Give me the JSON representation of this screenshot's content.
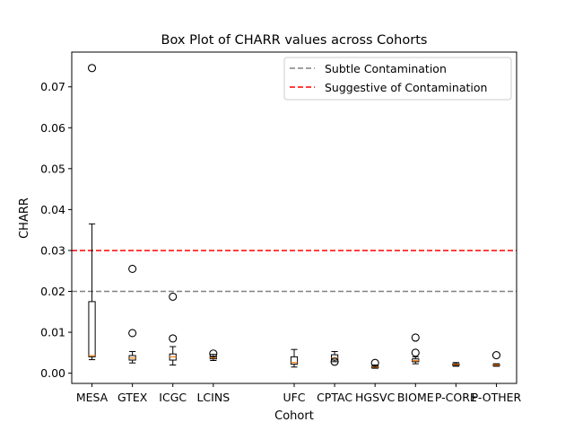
{
  "chart_data": {
    "type": "box",
    "title": "Box Plot of CHARR values across Cohorts",
    "xlabel": "Cohort",
    "ylabel": "CHARR",
    "ylim": [
      -0.0025,
      0.0785
    ],
    "yticks": [
      0.0,
      0.01,
      0.02,
      0.03,
      0.04,
      0.05,
      0.06,
      0.07
    ],
    "ytick_labels": [
      "0.00",
      "0.01",
      "0.02",
      "0.03",
      "0.04",
      "0.05",
      "0.06",
      "0.07"
    ],
    "grid": false,
    "legend_placement": "upper-right",
    "legend": [
      {
        "label": "Subtle Contamination",
        "color": "#808080",
        "style": "dashed"
      },
      {
        "label": "Suggestive of Contamination",
        "color": "#ff0000",
        "style": "dashed"
      }
    ],
    "hlines": [
      {
        "y": 0.02,
        "color": "#808080",
        "style": "dashed",
        "label": "Subtle Contamination"
      },
      {
        "y": 0.03,
        "color": "#ff0000",
        "style": "dashed",
        "label": "Suggestive of Contamination"
      }
    ],
    "median_color": "#ff7f0e",
    "categories": [
      "MESA",
      "GTEX",
      "ICGC",
      "LCINS",
      "UFC",
      "CPTAC",
      "HGSVC",
      "BIOME",
      "P-CORE",
      "P-OTHER"
    ],
    "positions": [
      1,
      2,
      3,
      4,
      6,
      7,
      8,
      9,
      10,
      11
    ],
    "boxes": [
      {
        "name": "MESA",
        "whislo": 0.0033,
        "q1": 0.004,
        "med": 0.0043,
        "q3": 0.0175,
        "whishi": 0.0365,
        "fliers": [
          0.0746
        ]
      },
      {
        "name": "GTEX",
        "whislo": 0.0025,
        "q1": 0.0032,
        "med": 0.0037,
        "q3": 0.0043,
        "whishi": 0.0053,
        "fliers": [
          0.0255,
          0.0098
        ]
      },
      {
        "name": "ICGC",
        "whislo": 0.002,
        "q1": 0.0032,
        "med": 0.004,
        "q3": 0.0047,
        "whishi": 0.0065,
        "fliers": [
          0.0187,
          0.0085
        ]
      },
      {
        "name": "LCINS",
        "whislo": 0.0031,
        "q1": 0.0035,
        "med": 0.0038,
        "q3": 0.0041,
        "whishi": 0.0046,
        "fliers": [
          0.0048
        ]
      },
      {
        "name": "UFC",
        "whislo": 0.0015,
        "q1": 0.0022,
        "med": 0.0026,
        "q3": 0.004,
        "whishi": 0.0058,
        "fliers": []
      },
      {
        "name": "CPTAC",
        "whislo": 0.0028,
        "q1": 0.0032,
        "med": 0.0037,
        "q3": 0.0045,
        "whishi": 0.0053,
        "fliers": [
          0.0028
        ]
      },
      {
        "name": "HGSVC",
        "whislo": 0.0012,
        "q1": 0.0013,
        "med": 0.0015,
        "q3": 0.0017,
        "whishi": 0.002,
        "fliers": [
          0.0025
        ]
      },
      {
        "name": "BIOME",
        "whislo": 0.0023,
        "q1": 0.0028,
        "med": 0.0031,
        "q3": 0.0035,
        "whishi": 0.004,
        "fliers": [
          0.0087,
          0.005
        ]
      },
      {
        "name": "P-CORE",
        "whislo": 0.0017,
        "q1": 0.0019,
        "med": 0.0021,
        "q3": 0.0023,
        "whishi": 0.0026,
        "fliers": []
      },
      {
        "name": "P-OTHER",
        "whislo": 0.0017,
        "q1": 0.0019,
        "med": 0.002,
        "q3": 0.0021,
        "whishi": 0.0023,
        "fliers": [
          0.0044
        ]
      }
    ]
  }
}
